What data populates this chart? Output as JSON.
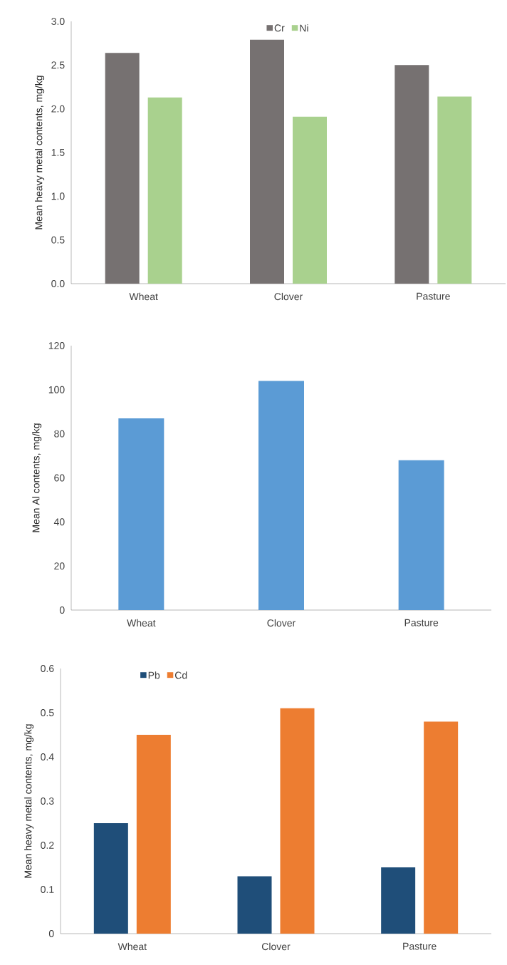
{
  "chart_data": [
    {
      "type": "bar",
      "ylabel": "Mean heavy metal contents, mg/kg",
      "categories": [
        "Wheat",
        "Clover",
        "Pasture"
      ],
      "series": [
        {
          "name": "Cr",
          "color": "#767171",
          "values": [
            2.64,
            2.79,
            2.5
          ]
        },
        {
          "name": "Ni",
          "color": "#a9d18e",
          "values": [
            2.13,
            1.91,
            2.14
          ]
        }
      ],
      "ylim": [
        0,
        3
      ],
      "yticks": [
        {
          "value": 0,
          "label": "0.0"
        },
        {
          "value": 0.5,
          "label": "0.5"
        },
        {
          "value": 1,
          "label": "1.0"
        },
        {
          "value": 1.5,
          "label": "1.5"
        },
        {
          "value": 2,
          "label": "2.0"
        },
        {
          "value": 2.5,
          "label": "2.5"
        },
        {
          "value": 3,
          "label": "3.0"
        }
      ],
      "grid": false,
      "legend": "top"
    },
    {
      "type": "bar",
      "ylabel": "Mean Al contents, mg/kg",
      "categories": [
        "Wheat",
        "Clover",
        "Pasture"
      ],
      "values": [
        87,
        104,
        68
      ],
      "color": "#5b9bd5",
      "ylim": [
        0,
        120
      ],
      "yticks": [
        0,
        20,
        40,
        60,
        80,
        100,
        120
      ],
      "grid": false,
      "legend": false
    },
    {
      "type": "bar",
      "ylabel": "Mean heavy metal contents, mg/kg",
      "categories": [
        "Wheat",
        "Clover",
        "Pasture"
      ],
      "series": [
        {
          "name": "Pb",
          "color": "#1f4e79",
          "values": [
            0.25,
            0.13,
            0.15
          ]
        },
        {
          "name": "Cd",
          "color": "#ed7d31",
          "values": [
            0.45,
            0.51,
            0.48
          ]
        }
      ],
      "ylim": [
        0,
        0.6
      ],
      "yticks": [
        0,
        0.1,
        0.2,
        0.3,
        0.4,
        0.5,
        0.6
      ],
      "grid": false,
      "legend": "top left"
    }
  ]
}
